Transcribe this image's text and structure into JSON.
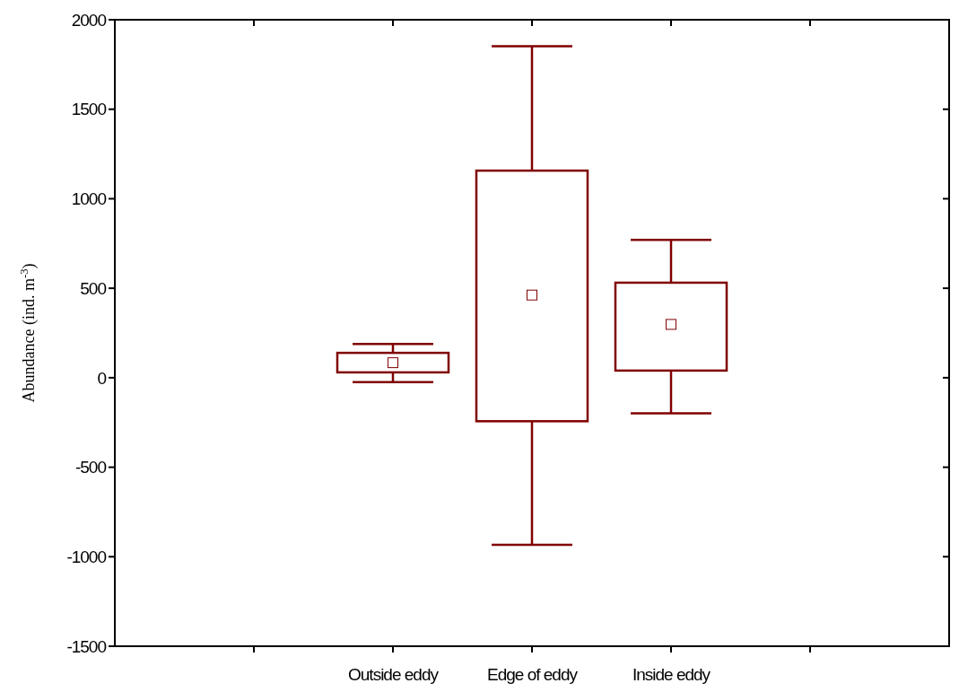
{
  "chart_data": {
    "type": "box",
    "ylabel": "Abundance (ind. m$^{-3}$)",
    "categories": [
      null,
      "Outside eddy",
      "Edge of eddy",
      "Inside eddy",
      null
    ],
    "boxes": [
      null,
      {
        "low": -25,
        "q1": 30,
        "median": 84,
        "q3": 139,
        "high": 189
      },
      {
        "low": -933,
        "q1": -243,
        "median": 462,
        "q3": 1157,
        "high": 1852
      },
      {
        "low": -199,
        "q1": 40,
        "median": 298,
        "q3": 531,
        "high": 770
      },
      null
    ],
    "color": "#800000",
    "marker": "square",
    "ylim": [
      -1500,
      2000
    ],
    "yticks": [
      -1500,
      -1000,
      -500,
      0,
      500,
      1000,
      1500,
      2000
    ],
    "grid": false
  }
}
